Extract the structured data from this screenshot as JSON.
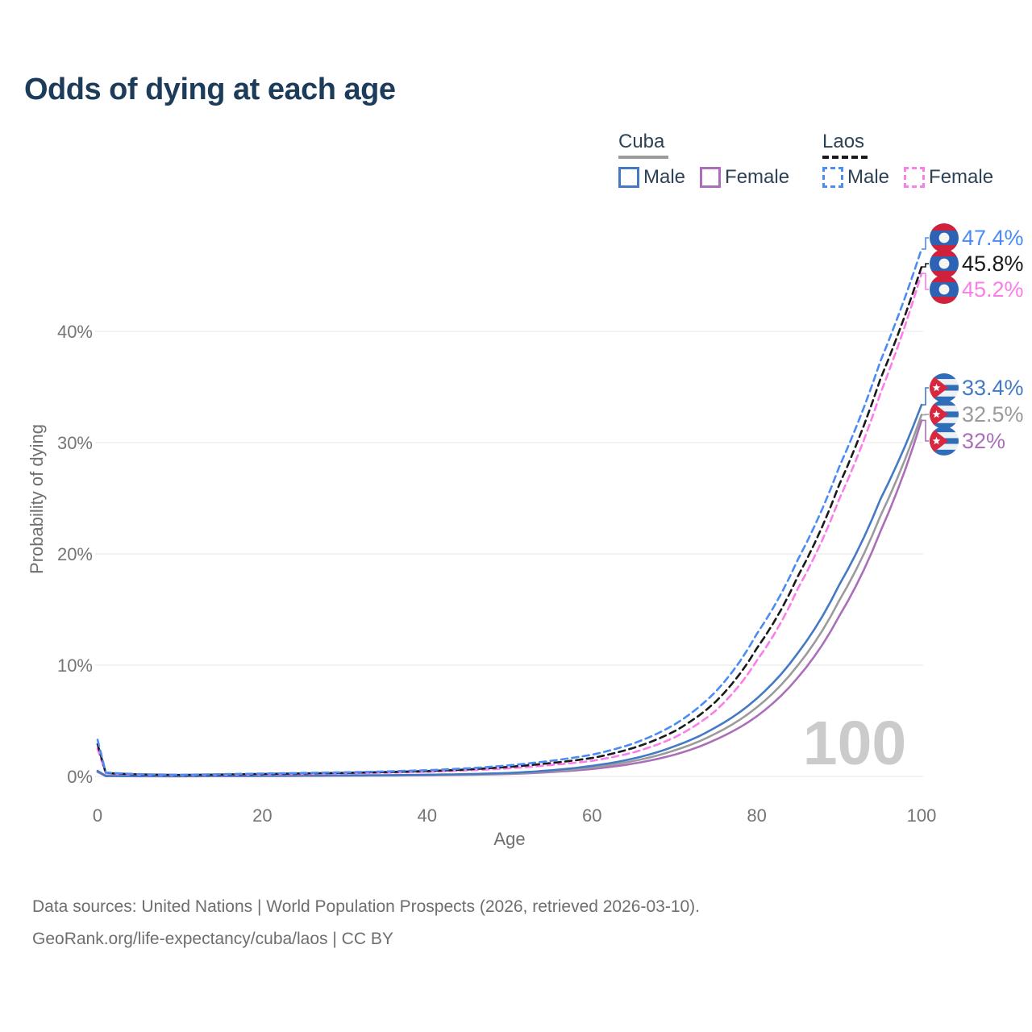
{
  "page": {
    "title": "Odds of dying at each age"
  },
  "legend": {
    "cuba": {
      "name": "Cuba",
      "male": "Male",
      "female": "Female"
    },
    "laos": {
      "name": "Laos",
      "male": "Male",
      "female": "Female"
    }
  },
  "footer": {
    "line1": "Data sources: United Nations | World Population Prospects (2026, retrieved 2026-03-10).",
    "line2": "GeoRank.org/life-expectancy/cuba/laos | CC BY"
  },
  "chart_data": {
    "type": "line",
    "title": "Odds of dying at each age",
    "xlabel": "Age",
    "ylabel": "Probability of dying",
    "xlim": [
      0,
      100
    ],
    "ylim_pct": [
      0,
      48
    ],
    "grid": true,
    "age_indicator": "100",
    "x_ticks": [
      {
        "label": "0",
        "value": 0
      },
      {
        "label": "20",
        "value": 20
      },
      {
        "label": "40",
        "value": 40
      },
      {
        "label": "60",
        "value": 60
      },
      {
        "label": "80",
        "value": 80
      },
      {
        "label": "100",
        "value": 100
      }
    ],
    "y_ticks": [
      {
        "label": "0%",
        "value": 0
      },
      {
        "label": "10%",
        "value": 10
      },
      {
        "label": "20%",
        "value": 20
      },
      {
        "label": "30%",
        "value": 30
      },
      {
        "label": "40%",
        "value": 40
      }
    ],
    "ages": [
      0,
      1,
      5,
      10,
      15,
      20,
      25,
      30,
      35,
      40,
      45,
      50,
      55,
      60,
      65,
      70,
      75,
      80,
      85,
      90,
      95,
      100
    ],
    "series": [
      {
        "id": "laos-male",
        "country": "Laos",
        "sex": "male",
        "flag": "laos",
        "color": "#4b8bf4",
        "dash": true,
        "end_label": "47.4%",
        "values": [
          3.3,
          0.35,
          0.2,
          0.15,
          0.2,
          0.26,
          0.31,
          0.37,
          0.45,
          0.56,
          0.73,
          1.0,
          1.4,
          1.95,
          2.95,
          4.65,
          7.6,
          12.8,
          19.5,
          27.8,
          37.3,
          47.4
        ]
      },
      {
        "id": "laos-combined",
        "country": "Laos",
        "sex": "all",
        "flag": "laos",
        "color": "#1a1a1a",
        "dash": true,
        "end_label": "45.8%",
        "values": [
          2.9,
          0.31,
          0.18,
          0.13,
          0.17,
          0.22,
          0.27,
          0.32,
          0.39,
          0.48,
          0.63,
          0.86,
          1.2,
          1.65,
          2.55,
          4.05,
          6.7,
          11.5,
          18.0,
          26.2,
          35.7,
          45.8
        ]
      },
      {
        "id": "laos-female",
        "country": "Laos",
        "sex": "female",
        "flag": "laos",
        "color": "#fb7de8",
        "dash": true,
        "end_label": "45.2%",
        "values": [
          2.5,
          0.27,
          0.15,
          0.11,
          0.14,
          0.18,
          0.22,
          0.27,
          0.33,
          0.41,
          0.54,
          0.73,
          1.02,
          1.4,
          2.15,
          3.5,
          5.9,
          10.4,
          16.9,
          24.9,
          34.4,
          45.2
        ]
      },
      {
        "id": "cuba-male",
        "country": "Cuba",
        "sex": "male",
        "flag": "cuba",
        "color": "#4479c4",
        "dash": false,
        "end_label": "33.4%",
        "values": [
          0.5,
          0.04,
          0.022,
          0.02,
          0.038,
          0.058,
          0.07,
          0.088,
          0.11,
          0.15,
          0.21,
          0.31,
          0.55,
          0.95,
          1.6,
          2.7,
          4.4,
          7.0,
          11.1,
          17.2,
          24.9,
          33.4
        ]
      },
      {
        "id": "cuba-combined",
        "country": "Cuba",
        "sex": "all",
        "flag": "cuba",
        "color": "#9b9b9b",
        "dash": false,
        "end_label": "32.5%",
        "values": [
          0.45,
          0.035,
          0.019,
          0.017,
          0.032,
          0.048,
          0.059,
          0.074,
          0.094,
          0.128,
          0.18,
          0.265,
          0.47,
          0.81,
          1.38,
          2.33,
          3.85,
          6.2,
          10.0,
          15.8,
          23.4,
          32.5
        ]
      },
      {
        "id": "cuba-female",
        "country": "Cuba",
        "sex": "female",
        "flag": "cuba",
        "color": "#ab6fba",
        "dash": false,
        "end_label": "32%",
        "values": [
          0.4,
          0.03,
          0.016,
          0.014,
          0.026,
          0.038,
          0.048,
          0.06,
          0.077,
          0.105,
          0.15,
          0.22,
          0.39,
          0.67,
          1.15,
          1.95,
          3.3,
          5.4,
          8.9,
          14.4,
          22.0,
          32.0
        ]
      }
    ],
    "colors": {
      "cuba_male": "#4479c4",
      "cuba_female": "#ab6fba",
      "cuba_combined": "#9b9b9b",
      "laos_male": "#4b8bf4",
      "laos_female": "#fb7de8",
      "laos_combined": "#1a1a1a",
      "grid": "#ebebeb",
      "watermark": "#cbcbcb",
      "title": "#1d3c5a"
    }
  }
}
